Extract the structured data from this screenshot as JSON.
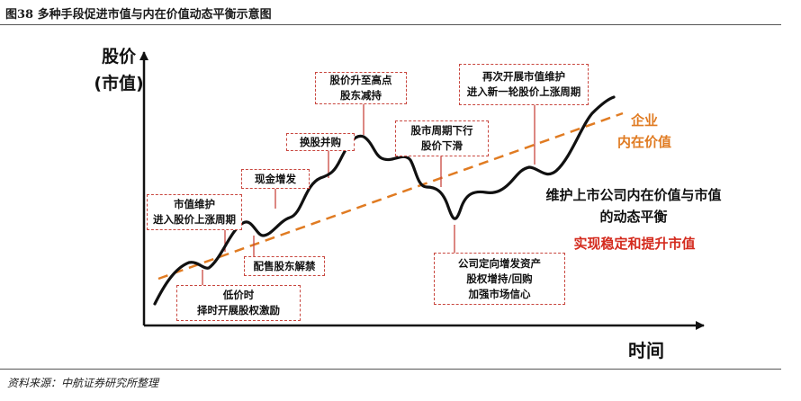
{
  "figure": {
    "title": "图38  多种手段促进市值与内在价值动态平衡示意图",
    "source": "资料来源：中航证券研究所整理"
  },
  "axes": {
    "y_label_line1": "股价",
    "y_label_line2": "(市值)",
    "x_label": "时间"
  },
  "callouts": {
    "market_value_maintain": [
      "市值维护",
      "进入股价上涨周期"
    ],
    "low_price": [
      "低价时",
      "择时开展股权激励"
    ],
    "cash_increase": [
      "现金增发"
    ],
    "share_sale_lift": [
      "配售股东解禁"
    ],
    "share_swap_merger": [
      "换股并购"
    ],
    "price_peak_reduce": [
      "股价升至高点",
      "股东减持"
    ],
    "cycle_down": [
      "股市周期下行",
      "股价下滑"
    ],
    "targeted_issue": [
      "公司定向增发资产",
      "股权增持/回购",
      "加强市场信心"
    ],
    "maintain_again": [
      "再次开展市值维护",
      "进入新一轮股价上涨周期"
    ]
  },
  "annotations": {
    "intrinsic_line1": "企业",
    "intrinsic_line2": "内在价值",
    "balance_line1": "维护上市公司内在价值与市值",
    "balance_line2": "的动态平衡",
    "goal": "实现稳定和提升市值"
  },
  "colors": {
    "trend_line": "#e07b22",
    "callout_border": "#c8463e",
    "leader_line": "#c8463e",
    "price_curve": "#111111",
    "goal_text": "#d42b1e"
  }
}
